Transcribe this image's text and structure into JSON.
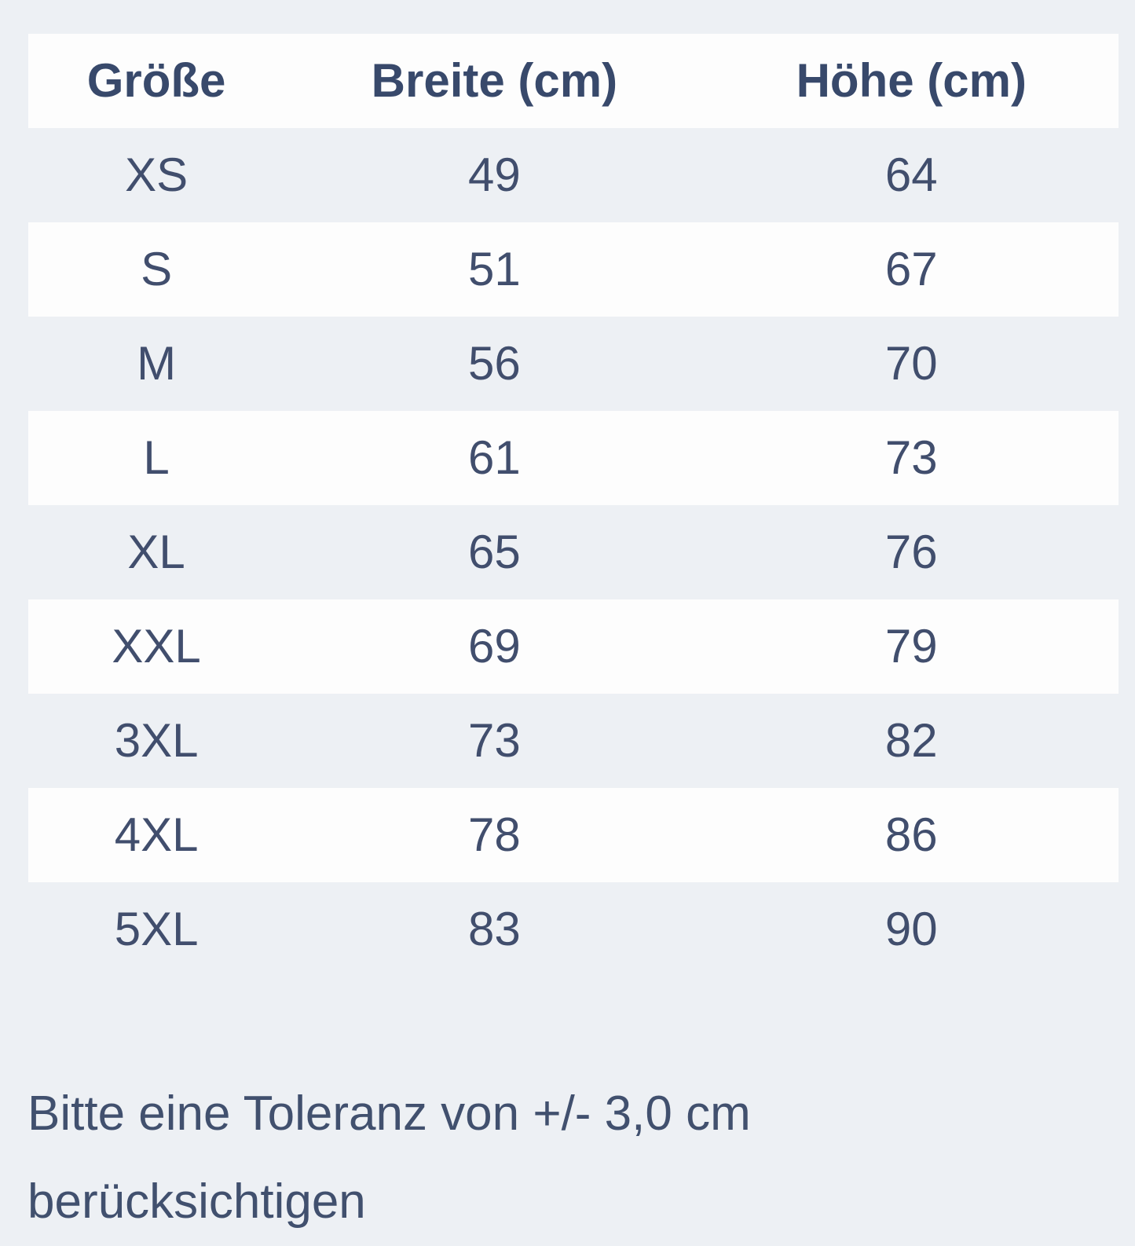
{
  "colors": {
    "page_background": "#edf0f4",
    "row_white": "#fdfdfd",
    "header_text": "#38496b",
    "body_text": "#414e6d"
  },
  "table": {
    "headers": [
      "Größe",
      "Breite (cm)",
      "Höhe (cm)"
    ],
    "rows": [
      {
        "size": "XS",
        "breite": "49",
        "hoehe": "64"
      },
      {
        "size": "S",
        "breite": "51",
        "hoehe": "67"
      },
      {
        "size": "M",
        "breite": "56",
        "hoehe": "70"
      },
      {
        "size": "L",
        "breite": "61",
        "hoehe": "73"
      },
      {
        "size": "XL",
        "breite": "65",
        "hoehe": "76"
      },
      {
        "size": "XXL",
        "breite": "69",
        "hoehe": "79"
      },
      {
        "size": "3XL",
        "breite": "73",
        "hoehe": "82"
      },
      {
        "size": "4XL",
        "breite": "78",
        "hoehe": "86"
      },
      {
        "size": "5XL",
        "breite": "83",
        "hoehe": "90"
      }
    ]
  },
  "note": {
    "text": "Bitte eine Toleranz von +/- 3,0 cm berücksichtigen"
  },
  "chart_data": {
    "type": "table",
    "title": "",
    "columns": [
      "Größe",
      "Breite (cm)",
      "Höhe (cm)"
    ],
    "rows": [
      [
        "XS",
        49,
        64
      ],
      [
        "S",
        51,
        67
      ],
      [
        "M",
        56,
        70
      ],
      [
        "L",
        61,
        73
      ],
      [
        "XL",
        65,
        76
      ],
      [
        "XXL",
        69,
        79
      ],
      [
        "3XL",
        73,
        82
      ],
      [
        "4XL",
        78,
        86
      ],
      [
        "5XL",
        83,
        90
      ]
    ],
    "note": "Bitte eine Toleranz von +/- 3,0 cm berücksichtigen",
    "layout": {
      "striped": true,
      "stripe_pattern": "header white, then rows alternate page-bg / white starting with page-bg",
      "alignment": "center"
    }
  }
}
